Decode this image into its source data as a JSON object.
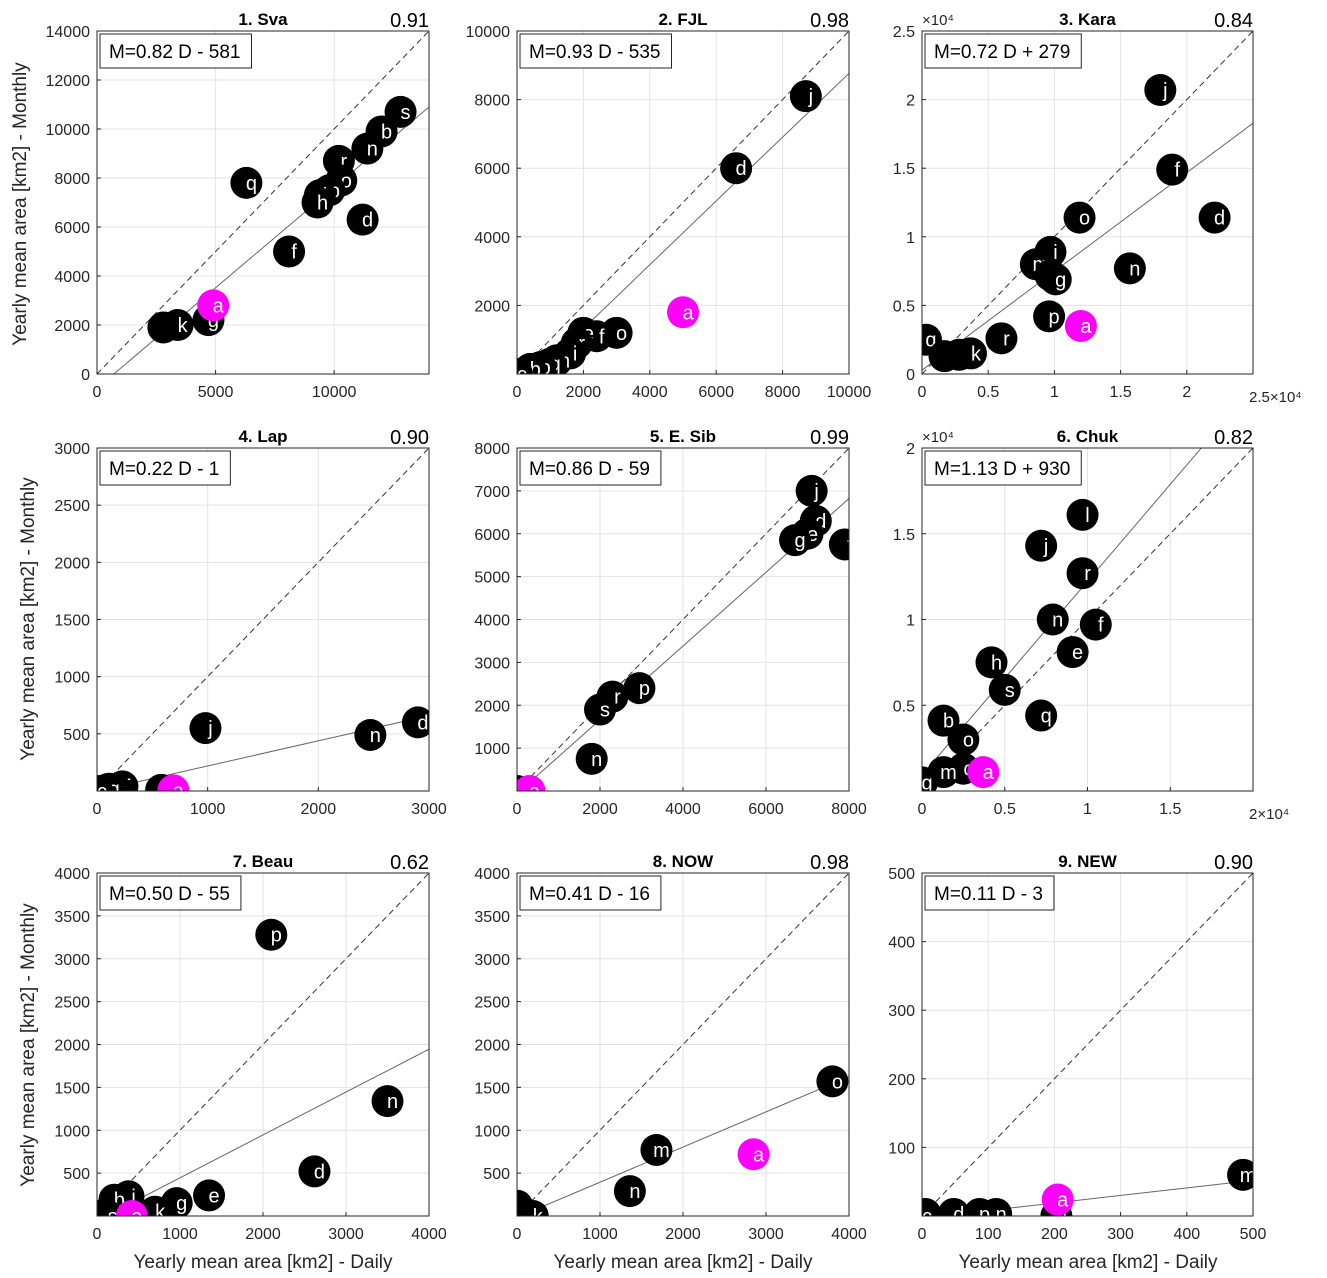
{
  "figure": {
    "ylabel": "Yearly mean area [km2] - Monthly",
    "xlabel": "Yearly mean area [km2] - Daily"
  },
  "colors": {
    "point": "#000000",
    "highlight": "#ff00ff",
    "grid": "#e3e3e3"
  },
  "chart_data": [
    {
      "type": "scatter",
      "title": "1. Sva",
      "r": "0.91",
      "equation": "M=0.82 D - 581",
      "fit": {
        "slope": 0.82,
        "intercept": -581
      },
      "xlim": [
        0,
        14000
      ],
      "ylim": [
        0,
        14000
      ],
      "xticks": [
        0,
        5000,
        10000
      ],
      "yticks": [
        0,
        2000,
        4000,
        6000,
        8000,
        10000,
        12000,
        14000
      ],
      "xticklabels": [
        "0",
        "5000",
        "10000"
      ],
      "yticklabels": [
        "0",
        "2000",
        "4000",
        "6000",
        "8000",
        "10000",
        "12000",
        "14000"
      ],
      "points": [
        {
          "label": "s",
          "x": 12800,
          "y": 10700
        },
        {
          "label": "b",
          "x": 12000,
          "y": 9900
        },
        {
          "label": "n",
          "x": 11400,
          "y": 9200
        },
        {
          "label": "r",
          "x": 10200,
          "y": 8700
        },
        {
          "label": "o",
          "x": 10300,
          "y": 7900
        },
        {
          "label": "p",
          "x": 9800,
          "y": 7500
        },
        {
          "label": "j",
          "x": 9400,
          "y": 7300
        },
        {
          "label": "h",
          "x": 9300,
          "y": 7000
        },
        {
          "label": "d",
          "x": 11200,
          "y": 6300
        },
        {
          "label": "q",
          "x": 6300,
          "y": 7800
        },
        {
          "label": "f",
          "x": 8100,
          "y": 5000
        },
        {
          "label": "l",
          "x": 2800,
          "y": 1900
        },
        {
          "label": "k",
          "x": 3400,
          "y": 2000
        },
        {
          "label": "g",
          "x": 4700,
          "y": 2200
        },
        {
          "label": "a",
          "x": 4900,
          "y": 2800,
          "highlight": true
        }
      ]
    },
    {
      "type": "scatter",
      "title": "2. FJL",
      "r": "0.98",
      "equation": "M=0.93 D - 535",
      "fit": {
        "slope": 0.93,
        "intercept": -535
      },
      "xlim": [
        0,
        10000
      ],
      "ylim": [
        0,
        10000
      ],
      "xticks": [
        0,
        2000,
        4000,
        6000,
        8000,
        10000
      ],
      "yticks": [
        2000,
        4000,
        6000,
        8000,
        10000
      ],
      "xticklabels": [
        "0",
        "2000",
        "4000",
        "6000",
        "8000",
        "10000"
      ],
      "yticklabels": [
        "2000",
        "4000",
        "6000",
        "8000",
        "10000"
      ],
      "points": [
        {
          "label": "j",
          "x": 8700,
          "y": 8100
        },
        {
          "label": "d",
          "x": 6600,
          "y": 6000
        },
        {
          "label": "o",
          "x": 3000,
          "y": 1200
        },
        {
          "label": "f",
          "x": 2400,
          "y": 1100
        },
        {
          "label": "e",
          "x": 2000,
          "y": 1200
        },
        {
          "label": "r",
          "x": 1800,
          "y": 900
        },
        {
          "label": "i",
          "x": 1600,
          "y": 600
        },
        {
          "label": "m",
          "x": 1200,
          "y": 400
        },
        {
          "label": "q",
          "x": 1000,
          "y": 300
        },
        {
          "label": "p",
          "x": 700,
          "y": 200
        },
        {
          "label": "b",
          "x": 400,
          "y": 150
        },
        {
          "label": "c",
          "x": 0,
          "y": 0
        },
        {
          "label": "a",
          "x": 5000,
          "y": 1800,
          "highlight": true
        }
      ]
    },
    {
      "type": "scatter",
      "title": "3. Kara",
      "r": "0.84",
      "equation": "M=0.72 D + 279",
      "fit": {
        "slope": 0.72,
        "intercept": 279
      },
      "exponent": "×10⁴",
      "xexponent": "2.5×10⁴",
      "xlim": [
        0,
        25000
      ],
      "ylim": [
        0,
        25000
      ],
      "xticks": [
        0,
        5000,
        10000,
        15000,
        20000
      ],
      "yticks": [
        0,
        5000,
        10000,
        15000,
        20000,
        25000
      ],
      "xticklabels": [
        "0",
        "0.5",
        "1",
        "1.5",
        "2"
      ],
      "yticklabels": [
        "0",
        "0.5",
        "1",
        "1.5",
        "2",
        "2.5"
      ],
      "points": [
        {
          "label": "j",
          "x": 18000,
          "y": 20700
        },
        {
          "label": "f",
          "x": 18900,
          "y": 14900
        },
        {
          "label": "d",
          "x": 22100,
          "y": 11400
        },
        {
          "label": "o",
          "x": 11900,
          "y": 11400
        },
        {
          "label": "i",
          "x": 9700,
          "y": 8900
        },
        {
          "label": "m",
          "x": 8600,
          "y": 8000
        },
        {
          "label": "e",
          "x": 9700,
          "y": 7200
        },
        {
          "label": "g",
          "x": 10100,
          "y": 6900
        },
        {
          "label": "n",
          "x": 15700,
          "y": 7700
        },
        {
          "label": "p",
          "x": 9600,
          "y": 4200
        },
        {
          "label": "r",
          "x": 6000,
          "y": 2600
        },
        {
          "label": "q",
          "x": 300,
          "y": 2500
        },
        {
          "label": "b",
          "x": 1700,
          "y": 1300
        },
        {
          "label": "s",
          "x": 2800,
          "y": 1400
        },
        {
          "label": "k",
          "x": 3700,
          "y": 1500
        },
        {
          "label": "a",
          "x": 12000,
          "y": 3500,
          "highlight": true
        }
      ]
    },
    {
      "type": "scatter",
      "title": "4. Lap",
      "r": "0.90",
      "equation": "M=0.22 D - 1",
      "fit": {
        "slope": 0.22,
        "intercept": -1
      },
      "xlim": [
        0,
        3000
      ],
      "ylim": [
        0,
        3000
      ],
      "xticks": [
        0,
        1000,
        2000,
        3000
      ],
      "yticks": [
        500,
        1000,
        1500,
        2000,
        2500,
        3000
      ],
      "xticklabels": [
        "0",
        "1000",
        "2000",
        "3000"
      ],
      "yticklabels": [
        "500",
        "1000",
        "1500",
        "2000",
        "2500",
        "3000"
      ],
      "points": [
        {
          "label": "d",
          "x": 2900,
          "y": 600
        },
        {
          "label": "n",
          "x": 2470,
          "y": 490
        },
        {
          "label": "j",
          "x": 980,
          "y": 550
        },
        {
          "label": "o",
          "x": 580,
          "y": 10
        },
        {
          "label": "f",
          "x": 230,
          "y": 40
        },
        {
          "label": "k",
          "x": 80,
          "y": 10
        },
        {
          "label": "x",
          "x": 170,
          "y": 10
        },
        {
          "label": "g",
          "x": 110,
          "y": 20
        },
        {
          "label": "c",
          "x": 0,
          "y": 0
        },
        {
          "label": "a",
          "x": 690,
          "y": 5,
          "highlight": true
        }
      ]
    },
    {
      "type": "scatter",
      "title": "5. E. Sib",
      "r": "0.99",
      "equation": "M=0.86 D - 59",
      "fit": {
        "slope": 0.86,
        "intercept": -59
      },
      "xlim": [
        0,
        8000
      ],
      "ylim": [
        0,
        8000
      ],
      "xticks": [
        0,
        2000,
        4000,
        6000,
        8000
      ],
      "yticks": [
        1000,
        2000,
        3000,
        4000,
        5000,
        6000,
        7000,
        8000
      ],
      "xticklabels": [
        "0",
        "2000",
        "4000",
        "6000",
        "8000"
      ],
      "yticklabels": [
        "1000",
        "2000",
        "3000",
        "4000",
        "5000",
        "6000",
        "7000",
        "8000"
      ],
      "points": [
        {
          "label": "j",
          "x": 7100,
          "y": 7000
        },
        {
          "label": "d",
          "x": 7200,
          "y": 6300
        },
        {
          "label": "e",
          "x": 7000,
          "y": 6000
        },
        {
          "label": "g",
          "x": 6700,
          "y": 5850
        },
        {
          "label": "f",
          "x": 7900,
          "y": 5750
        },
        {
          "label": "p",
          "x": 2950,
          "y": 2400
        },
        {
          "label": "r",
          "x": 2300,
          "y": 2200
        },
        {
          "label": "s",
          "x": 2000,
          "y": 1900
        },
        {
          "label": "n",
          "x": 1800,
          "y": 750
        },
        {
          "label": "c",
          "x": 0,
          "y": 0
        },
        {
          "label": "a",
          "x": 300,
          "y": 0,
          "highlight": true
        }
      ]
    },
    {
      "type": "scatter",
      "title": "6. Chuk",
      "r": "0.82",
      "equation": "M=1.13 D + 930",
      "fit": {
        "slope": 1.13,
        "intercept": 930
      },
      "exponent": "×10⁴",
      "xexponent": "2×10⁴",
      "xlim": [
        0,
        20000
      ],
      "ylim": [
        0,
        20000
      ],
      "xticks": [
        0,
        5000,
        10000,
        15000
      ],
      "yticks": [
        5000,
        10000,
        15000,
        20000
      ],
      "xticklabels": [
        "0",
        "0.5",
        "1",
        "1.5"
      ],
      "yticklabels": [
        "0.5",
        "1",
        "1.5",
        "2"
      ],
      "points": [
        {
          "label": "l",
          "x": 9700,
          "y": 16100
        },
        {
          "label": "j",
          "x": 7200,
          "y": 14300
        },
        {
          "label": "r",
          "x": 9700,
          "y": 12700
        },
        {
          "label": "n",
          "x": 7900,
          "y": 10000
        },
        {
          "label": "f",
          "x": 10500,
          "y": 9700
        },
        {
          "label": "e",
          "x": 9100,
          "y": 8100
        },
        {
          "label": "h",
          "x": 4200,
          "y": 7500
        },
        {
          "label": "s",
          "x": 5000,
          "y": 5900
        },
        {
          "label": "q",
          "x": 7200,
          "y": 4400
        },
        {
          "label": "b",
          "x": 1300,
          "y": 4100
        },
        {
          "label": "o",
          "x": 2500,
          "y": 3000
        },
        {
          "label": "c",
          "x": 2500,
          "y": 1300
        },
        {
          "label": "m",
          "x": 1300,
          "y": 1100
        },
        {
          "label": "g",
          "x": 0,
          "y": 500
        },
        {
          "label": "a",
          "x": 3700,
          "y": 1100,
          "highlight": true
        }
      ]
    },
    {
      "type": "scatter",
      "title": "7. Beau",
      "r": "0.62",
      "equation": "M=0.50 D - 55",
      "fit": {
        "slope": 0.5,
        "intercept": -55
      },
      "xlim": [
        0,
        4000
      ],
      "ylim": [
        0,
        4000
      ],
      "xticks": [
        0,
        1000,
        2000,
        3000,
        4000
      ],
      "yticks": [
        500,
        1000,
        1500,
        2000,
        2500,
        3000,
        3500,
        4000
      ],
      "xticklabels": [
        "0",
        "1000",
        "2000",
        "3000",
        "4000"
      ],
      "yticklabels": [
        "500",
        "1000",
        "1500",
        "2000",
        "2500",
        "3000",
        "3500",
        "4000"
      ],
      "points": [
        {
          "label": "p",
          "x": 2100,
          "y": 3280
        },
        {
          "label": "n",
          "x": 3500,
          "y": 1340
        },
        {
          "label": "d",
          "x": 2620,
          "y": 520
        },
        {
          "label": "e",
          "x": 1350,
          "y": 240
        },
        {
          "label": "g",
          "x": 960,
          "y": 150
        },
        {
          "label": "k",
          "x": 700,
          "y": 50
        },
        {
          "label": "i",
          "x": 380,
          "y": 230
        },
        {
          "label": "b",
          "x": 210,
          "y": 190
        },
        {
          "label": "c",
          "x": 0,
          "y": 0
        },
        {
          "label": "s",
          "x": 130,
          "y": 0
        },
        {
          "label": "a",
          "x": 420,
          "y": 0,
          "highlight": true
        }
      ]
    },
    {
      "type": "scatter",
      "title": "8. NOW",
      "r": "0.98",
      "equation": "M=0.41 D - 16",
      "fit": {
        "slope": 0.41,
        "intercept": -16
      },
      "xlim": [
        0,
        4000
      ],
      "ylim": [
        0,
        4000
      ],
      "xticks": [
        0,
        1000,
        2000,
        3000,
        4000
      ],
      "yticks": [
        500,
        1000,
        1500,
        2000,
        2500,
        3000,
        3500,
        4000
      ],
      "xticklabels": [
        "0",
        "1000",
        "2000",
        "3000",
        "4000"
      ],
      "yticklabels": [
        "500",
        "1000",
        "1500",
        "2000",
        "2500",
        "3000",
        "3500",
        "4000"
      ],
      "points": [
        {
          "label": "o",
          "x": 3800,
          "y": 1570
        },
        {
          "label": "m",
          "x": 1680,
          "y": 770
        },
        {
          "label": "n",
          "x": 1360,
          "y": 290
        },
        {
          "label": "c",
          "x": 0,
          "y": 120
        },
        {
          "label": "h",
          "x": 0,
          "y": 0
        },
        {
          "label": "f",
          "x": 110,
          "y": 20
        },
        {
          "label": "k",
          "x": 190,
          "y": 0
        },
        {
          "label": "a",
          "x": 2850,
          "y": 720,
          "highlight": true
        }
      ]
    },
    {
      "type": "scatter",
      "title": "9. NEW",
      "r": "0.90",
      "equation": "M=0.11 D - 3",
      "fit": {
        "slope": 0.11,
        "intercept": -3
      },
      "xlim": [
        0,
        500
      ],
      "ylim": [
        0,
        500
      ],
      "xticks": [
        0,
        100,
        200,
        300,
        400,
        500
      ],
      "yticks": [
        100,
        200,
        300,
        400,
        500
      ],
      "xticklabels": [
        "0",
        "100",
        "200",
        "300",
        "400",
        "500"
      ],
      "yticklabels": [
        "100",
        "200",
        "300",
        "400",
        "500"
      ],
      "points": [
        {
          "label": "m",
          "x": 485,
          "y": 60
        },
        {
          "label": "n",
          "x": 112,
          "y": 3
        },
        {
          "label": "p",
          "x": 87,
          "y": 3
        },
        {
          "label": "d",
          "x": 48,
          "y": 3
        },
        {
          "label": "k",
          "x": 5,
          "y": 3
        },
        {
          "label": "c",
          "x": 0,
          "y": 0
        },
        {
          "label": "o",
          "x": 203,
          "y": 0
        },
        {
          "label": "a",
          "x": 205,
          "y": 24,
          "highlight": true
        }
      ]
    }
  ]
}
